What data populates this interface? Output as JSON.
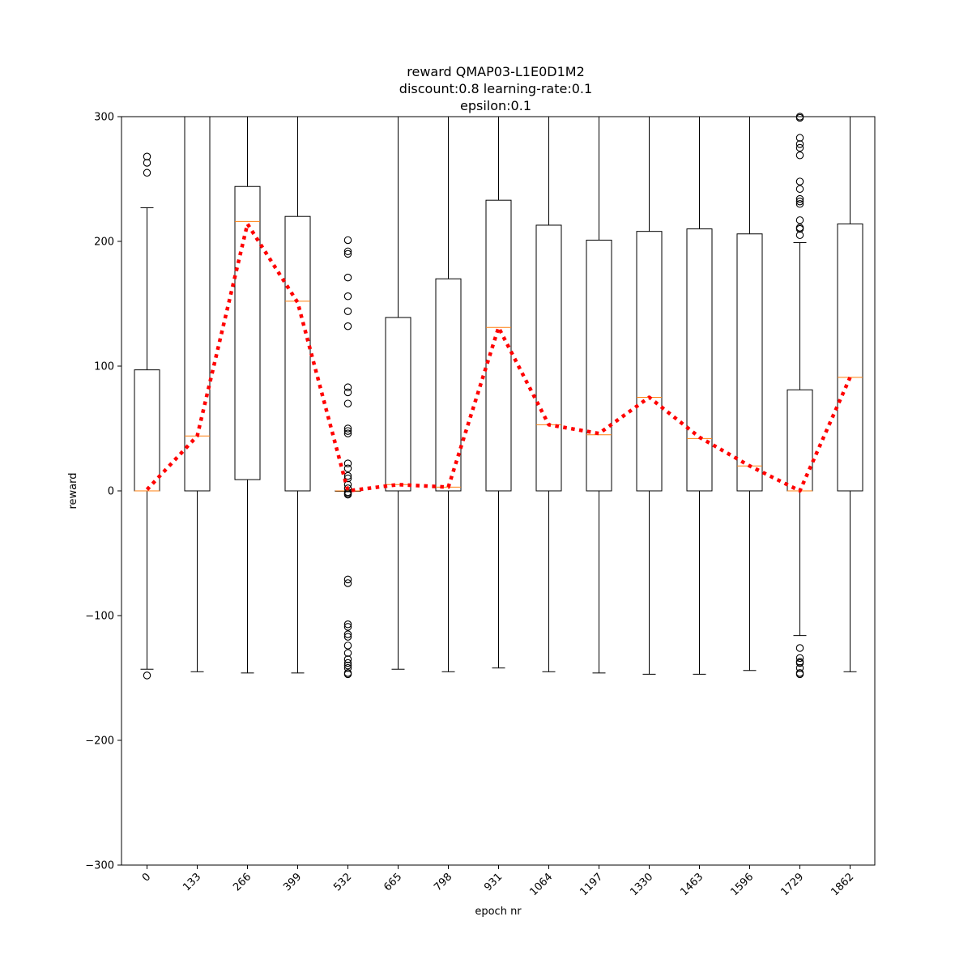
{
  "chart_data": {
    "type": "boxplot",
    "title_lines": [
      "reward QMAP03-L1E0D1M2",
      "discount:0.8 learning-rate:0.1",
      "epsilon:0.1"
    ],
    "xlabel": "epoch nr",
    "ylabel": "reward",
    "ylim": [
      -300,
      300
    ],
    "yticks": [
      -300,
      -200,
      -100,
      0,
      100,
      200,
      300
    ],
    "ytick_labels": [
      "−300",
      "−200",
      "−100",
      "0",
      "100",
      "200",
      "300"
    ],
    "categories": [
      "0",
      "133",
      "266",
      "399",
      "532",
      "665",
      "798",
      "931",
      "1064",
      "1197",
      "1330",
      "1463",
      "1596",
      "1729",
      "1862"
    ],
    "boxes": [
      {
        "whisker_low": -143,
        "q1": 0,
        "median": 0,
        "q3": 97,
        "whisker_high": 227,
        "outliers": [
          -148,
          255,
          263,
          268
        ]
      },
      {
        "whisker_low": -145,
        "q1": 0,
        "median": 44,
        "q3": 300,
        "whisker_high": 300,
        "outliers": []
      },
      {
        "whisker_low": -146,
        "q1": 9,
        "median": 216,
        "q3": 244,
        "whisker_high": 300,
        "outliers": []
      },
      {
        "whisker_low": -146,
        "q1": 0,
        "median": 152,
        "q3": 220,
        "whisker_high": 300,
        "outliers": []
      },
      {
        "whisker_low": 0,
        "q1": 0,
        "median": 0,
        "q3": 0,
        "whisker_high": 0,
        "outliers": [
          201,
          192,
          190,
          171,
          156,
          144,
          132,
          83,
          79,
          70,
          50,
          48,
          46,
          22,
          18,
          12,
          10,
          5,
          2,
          -1,
          -2,
          -3,
          -71,
          -74,
          -107,
          -109,
          -115,
          -117,
          -124,
          -130,
          -135,
          -138,
          -140,
          -142,
          -146,
          -147
        ]
      },
      {
        "whisker_low": -143,
        "q1": 0,
        "median": 5,
        "q3": 139,
        "whisker_high": 300,
        "outliers": []
      },
      {
        "whisker_low": -145,
        "q1": 0,
        "median": 3,
        "q3": 170,
        "whisker_high": 300,
        "outliers": []
      },
      {
        "whisker_low": -142,
        "q1": 0,
        "median": 131,
        "q3": 233,
        "whisker_high": 300,
        "outliers": []
      },
      {
        "whisker_low": -145,
        "q1": 0,
        "median": 53,
        "q3": 213,
        "whisker_high": 300,
        "outliers": []
      },
      {
        "whisker_low": -146,
        "q1": 0,
        "median": 45,
        "q3": 201,
        "whisker_high": 300,
        "outliers": []
      },
      {
        "whisker_low": -147,
        "q1": 0,
        "median": 75,
        "q3": 208,
        "whisker_high": 300,
        "outliers": []
      },
      {
        "whisker_low": -147,
        "q1": 0,
        "median": 42,
        "q3": 210,
        "whisker_high": 300,
        "outliers": []
      },
      {
        "whisker_low": -144,
        "q1": 0,
        "median": 20,
        "q3": 206,
        "whisker_high": 300,
        "outliers": []
      },
      {
        "whisker_low": -116,
        "q1": 0,
        "median": 0,
        "q3": 81,
        "whisker_high": 199,
        "outliers": [
          300,
          299,
          283,
          278,
          275,
          269,
          248,
          242,
          234,
          232,
          230,
          217,
          211,
          210,
          205,
          -126,
          -134,
          -137,
          -138,
          -142,
          -146,
          -147
        ]
      },
      {
        "whisker_low": -145,
        "q1": 0,
        "median": 91,
        "q3": 214,
        "whisker_high": 300,
        "outliers": []
      }
    ],
    "trend_line": {
      "style": "dotted",
      "color": "#ff0000",
      "values": [
        1,
        44,
        214,
        151,
        0,
        5,
        3,
        131,
        53,
        46,
        75,
        43,
        20,
        0,
        91
      ]
    },
    "colors": {
      "box": "#000000",
      "median": "#ff7f0e",
      "trend": "#ff0000",
      "axes": "#000000"
    },
    "grid": false,
    "legend": "none"
  }
}
